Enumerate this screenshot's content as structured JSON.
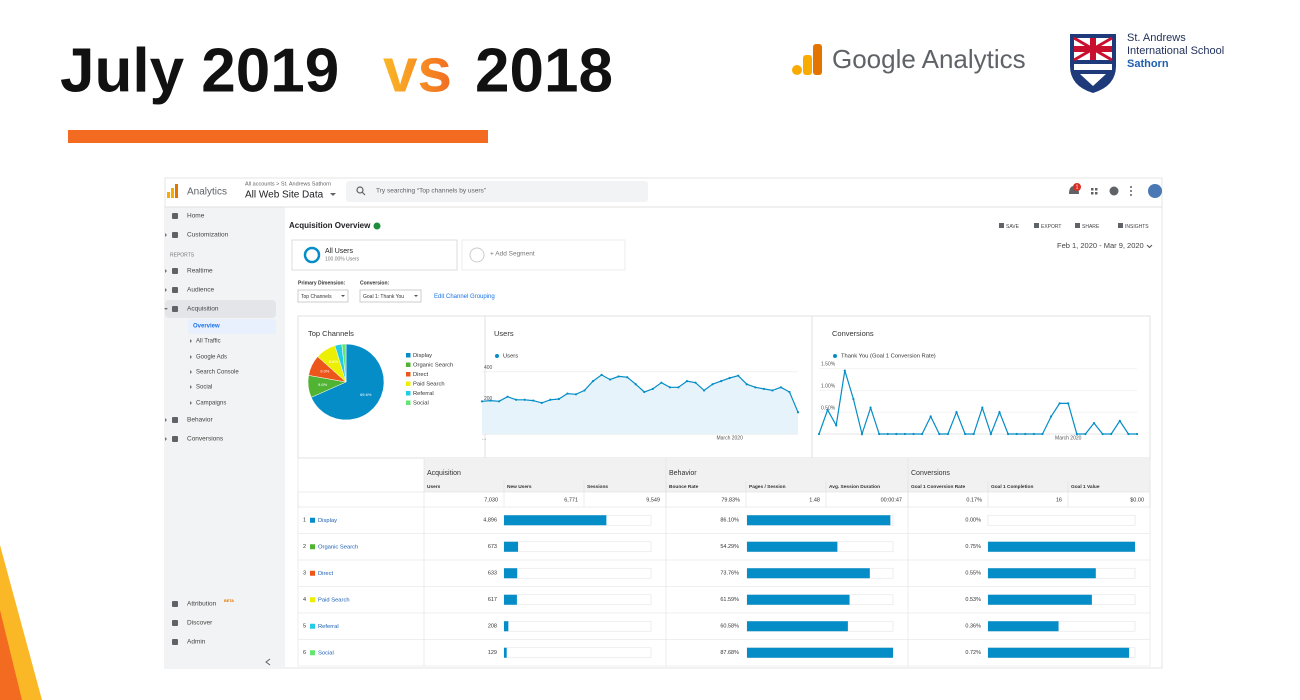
{
  "slide": {
    "title_main": "July 2019",
    "title_vs": "vs",
    "title_year": "2018",
    "ga_logo": "Google Analytics",
    "school": [
      "St. Andrews",
      "International School",
      "Sathorn"
    ]
  },
  "header": {
    "app": "Analytics",
    "breadcrumb": "All accounts > St. Andrews Sathorn",
    "property": "All Web Site Data",
    "search": "Try searching “Top channels by users”",
    "notifications": "1"
  },
  "sidebar": {
    "items": [
      "Home",
      "Customization",
      "Realtime",
      "Audience",
      "Acquisition",
      "Overview",
      "All Traffic",
      "Google Ads",
      "Search Console",
      "Social",
      "Campaigns",
      "Behavior",
      "Conversions",
      "Attribution",
      "Discover",
      "Admin"
    ],
    "reports_heading": "REPORTS",
    "beta": "BETA"
  },
  "report": {
    "title": "Acquisition Overview",
    "actions": [
      "SAVE",
      "EXPORT",
      "SHARE",
      "INSIGHTS"
    ],
    "date_range": "Feb 1, 2020 - Mar 9, 2020",
    "segment": "All Users",
    "segment_share": "100.00% Users",
    "add_segment": "+ Add Segment",
    "primary_dimension_label": "Primary Dimension:",
    "primary_dimension": "Top Channels",
    "conversion_label": "Conversion:",
    "conversion": "Goal 1: Thank You",
    "edit_link": "Edit Channel Grouping"
  },
  "chart_data": [
    {
      "type": "pie",
      "title": "Top Channels",
      "categories": [
        "Display",
        "Organic Search",
        "Direct",
        "Paid Search",
        "Referral",
        "Social"
      ],
      "values": [
        69.6,
        9.6,
        9.0,
        8.8,
        3.0,
        1.8
      ],
      "value_labels": [
        "69.6%",
        "9.6%",
        "9.0%",
        "8.8%",
        null,
        null
      ],
      "colors": [
        "#058dc7",
        "#50b432",
        "#ed561b",
        "#edef00",
        "#24cbe5",
        "#64e572"
      ]
    },
    {
      "type": "line",
      "title": "Users",
      "series": [
        {
          "name": "Users",
          "color": "#058dc7",
          "values": [
            210,
            215,
            210,
            240,
            220,
            220,
            215,
            200,
            220,
            225,
            260,
            255,
            280,
            340,
            380,
            350,
            370,
            365,
            320,
            270,
            290,
            330,
            300,
            300,
            340,
            330,
            280,
            320,
            340,
            360,
            375,
            320,
            300,
            290,
            280,
            300,
            270,
            140
          ]
        }
      ],
      "ylim": [
        0,
        450
      ],
      "yticks": [
        200,
        400
      ],
      "xticks": [
        {
          "value": 0,
          "label": "..."
        },
        {
          "value": 29,
          "label": "March 2020"
        }
      ],
      "area": true,
      "grid": true
    },
    {
      "type": "line",
      "title": "Conversions",
      "series": [
        {
          "name": "Thank You (Goal 1 Conversion Rate)",
          "color": "#058dc7",
          "values": [
            0,
            0.55,
            0.2,
            1.45,
            0.8,
            0,
            0.6,
            0,
            0,
            0,
            0,
            0,
            0,
            0.4,
            0,
            0,
            0.5,
            0,
            0,
            0.6,
            0,
            0.5,
            0,
            0,
            0,
            0,
            0,
            0.4,
            0.7,
            0.7,
            0,
            0,
            0.25,
            0,
            0,
            0.3,
            0,
            0
          ]
        }
      ],
      "ylim": [
        0,
        1.6
      ],
      "yticks": [
        {
          "value": 0.5,
          "label": "0.50%"
        },
        {
          "value": 1.0,
          "label": "1.00%"
        },
        {
          "value": 1.5,
          "label": "1.50%"
        }
      ],
      "xticks": [
        {
          "value": 29,
          "label": "March 2020"
        }
      ],
      "area": false,
      "grid": true
    }
  ],
  "table": {
    "groups": [
      "Acquisition",
      "Behavior",
      "Conversions"
    ],
    "columns": [
      "Users",
      "New Users",
      "Sessions",
      "Bounce Rate",
      "Pages / Session",
      "Avg. Session Duration",
      "Goal 1 Conversion Rate",
      "Goal 1 Completion",
      "Goal 1 Value"
    ],
    "totals": [
      {
        "value": 7030,
        "label": "7,030"
      },
      {
        "value": 6771,
        "label": "6,771"
      },
      {
        "value": 9549,
        "label": "9,549"
      },
      {
        "value": 79.83,
        "label": "79.83%"
      },
      1.48,
      {
        "value": 47,
        "label": "00:00:47"
      },
      {
        "value": 0.17,
        "label": "0.17%"
      },
      16,
      {
        "value": 0,
        "label": "$0.00"
      }
    ],
    "rows": [
      {
        "rank": 1,
        "name": "Display",
        "color": "#058dc7",
        "users": 4896,
        "users_label": "4,896",
        "bounce_rate": 86.1,
        "bounce_rate_label": "86.10%",
        "conversion_rate": 0.0,
        "conversion_rate_label": "0.00%"
      },
      {
        "rank": 2,
        "name": "Organic Search",
        "color": "#50b432",
        "users": 673,
        "users_label": "673",
        "bounce_rate": 54.29,
        "bounce_rate_label": "54.29%",
        "conversion_rate": 0.75,
        "conversion_rate_label": "0.75%"
      },
      {
        "rank": 3,
        "name": "Direct",
        "color": "#ed561b",
        "users": 633,
        "users_label": "633",
        "bounce_rate": 73.76,
        "bounce_rate_label": "73.76%",
        "conversion_rate": 0.55,
        "conversion_rate_label": "0.55%"
      },
      {
        "rank": 4,
        "name": "Paid Search",
        "color": "#edef00",
        "users": 617,
        "users_label": "617",
        "bounce_rate": 61.59,
        "bounce_rate_label": "61.59%",
        "conversion_rate": 0.53,
        "conversion_rate_label": "0.53%"
      },
      {
        "rank": 5,
        "name": "Referral",
        "color": "#24cbe5",
        "users": 208,
        "users_label": "208",
        "bounce_rate": 60.58,
        "bounce_rate_label": "60.58%",
        "conversion_rate": 0.36,
        "conversion_rate_label": "0.36%"
      },
      {
        "rank": 6,
        "name": "Social",
        "color": "#64e572",
        "users": 129,
        "users_label": "129",
        "bounce_rate": 87.68,
        "bounce_rate_label": "87.68%",
        "conversion_rate": 0.72,
        "conversion_rate_label": "0.72%"
      }
    ]
  }
}
